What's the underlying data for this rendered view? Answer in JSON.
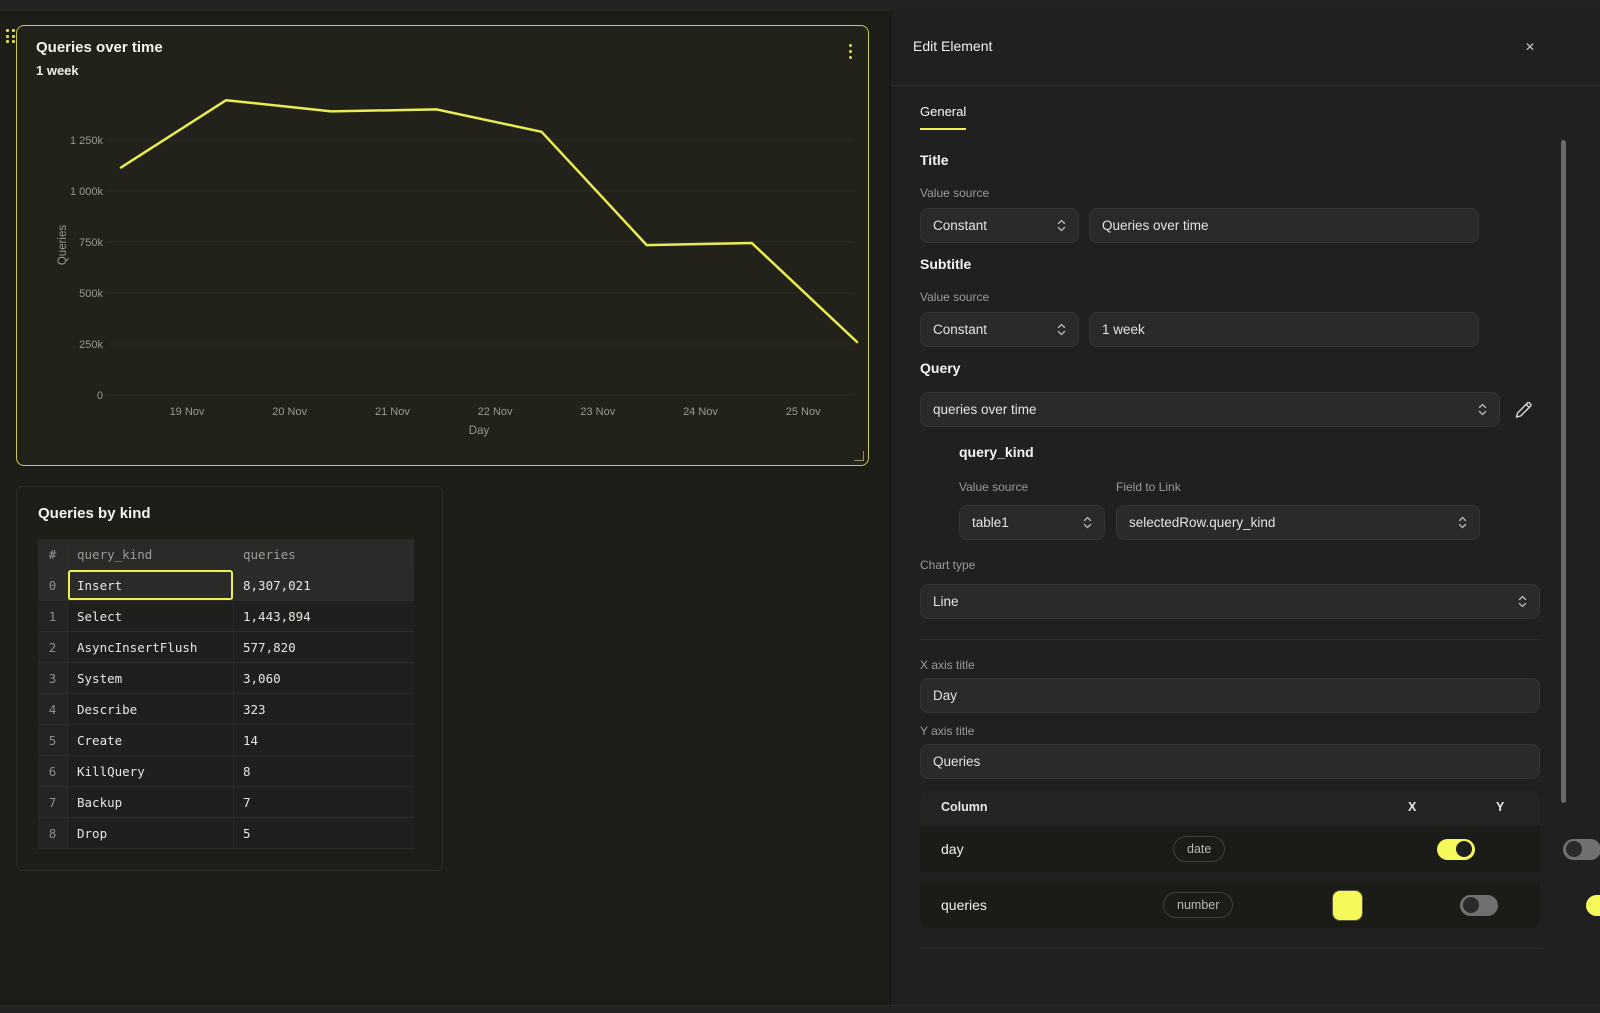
{
  "colors": {
    "accent_yellow": "#eef054",
    "chart_line": "#e9ec52",
    "toggle_on": "#f6f95a",
    "selected_panel_border": "#c9cc4b"
  },
  "canvas": {
    "chart_panel": {
      "title": "Queries over time",
      "subtitle": "1 week"
    },
    "table_panel": {
      "title": "Queries by kind",
      "headers": [
        "#",
        "query_kind",
        "queries"
      ],
      "rows": [
        {
          "num": "0",
          "kind": "Insert",
          "count": "8,307,021",
          "selected": true
        },
        {
          "num": "1",
          "kind": "Select",
          "count": "1,443,894",
          "selected": false
        },
        {
          "num": "2",
          "kind": "AsyncInsertFlush",
          "count": "577,820",
          "selected": false
        },
        {
          "num": "3",
          "kind": "System",
          "count": "3,060",
          "selected": false
        },
        {
          "num": "4",
          "kind": "Describe",
          "count": "323",
          "selected": false
        },
        {
          "num": "5",
          "kind": "Create",
          "count": "14",
          "selected": false
        },
        {
          "num": "6",
          "kind": "KillQuery",
          "count": "8",
          "selected": false
        },
        {
          "num": "7",
          "kind": "Backup",
          "count": "7",
          "selected": false
        },
        {
          "num": "8",
          "kind": "Drop",
          "count": "5",
          "selected": false
        }
      ]
    }
  },
  "chart_data": {
    "type": "line",
    "title": "Queries over time",
    "subtitle": "1 week",
    "xlabel": "Day",
    "ylabel": "Queries",
    "grid": "horizontal",
    "legend": "none",
    "ylim": [
      0,
      1500000
    ],
    "x_tick_labels": [
      "19 Nov",
      "20 Nov",
      "21 Nov",
      "22 Nov",
      "23 Nov",
      "24 Nov",
      "25 Nov"
    ],
    "y_ticks": [
      {
        "value": 0,
        "label": "0"
      },
      {
        "value": 250000,
        "label": "250k"
      },
      {
        "value": 500000,
        "label": "500k"
      },
      {
        "value": 750000,
        "label": "750k"
      },
      {
        "value": 1000000,
        "label": "1 000k"
      },
      {
        "value": 1250000,
        "label": "1 250k"
      }
    ],
    "series": [
      {
        "name": "queries",
        "color": "#e9ec52",
        "values": [
          1115000,
          1445000,
          1390000,
          1400000,
          1290000,
          735000,
          745000,
          260000
        ]
      }
    ]
  },
  "editor": {
    "title": "Edit Element",
    "close_icon": "✕",
    "tabs": [
      {
        "label": "General",
        "active": true
      }
    ],
    "sections": {
      "title": {
        "heading": "Title",
        "source_label": "Value source",
        "source_value": "Constant",
        "text_value": "Queries over time"
      },
      "subtitle": {
        "heading": "Subtitle",
        "source_label": "Value source",
        "source_value": "Constant",
        "text_value": "1 week"
      },
      "query": {
        "heading": "Query",
        "selected_value": "queries over time"
      },
      "query_kind": {
        "heading": "query_kind",
        "source_label": "Value source",
        "source_value": "table1",
        "field_label": "Field to Link",
        "field_value": "selectedRow.query_kind"
      },
      "chart_type": {
        "label": "Chart type",
        "value": "Line"
      },
      "x_axis": {
        "label": "X axis title",
        "value": "Day"
      },
      "y_axis": {
        "label": "Y axis title",
        "value": "Queries"
      }
    },
    "columns_table": {
      "column_header": "Column",
      "x_header": "X",
      "y_header": "Y",
      "rows": [
        {
          "name": "day",
          "type_badge": "date",
          "x_on": true,
          "y_on": false,
          "swatch": null
        },
        {
          "name": "queries",
          "type_badge": "number",
          "x_on": false,
          "y_on": true,
          "swatch": "#f6f95a"
        }
      ]
    }
  }
}
